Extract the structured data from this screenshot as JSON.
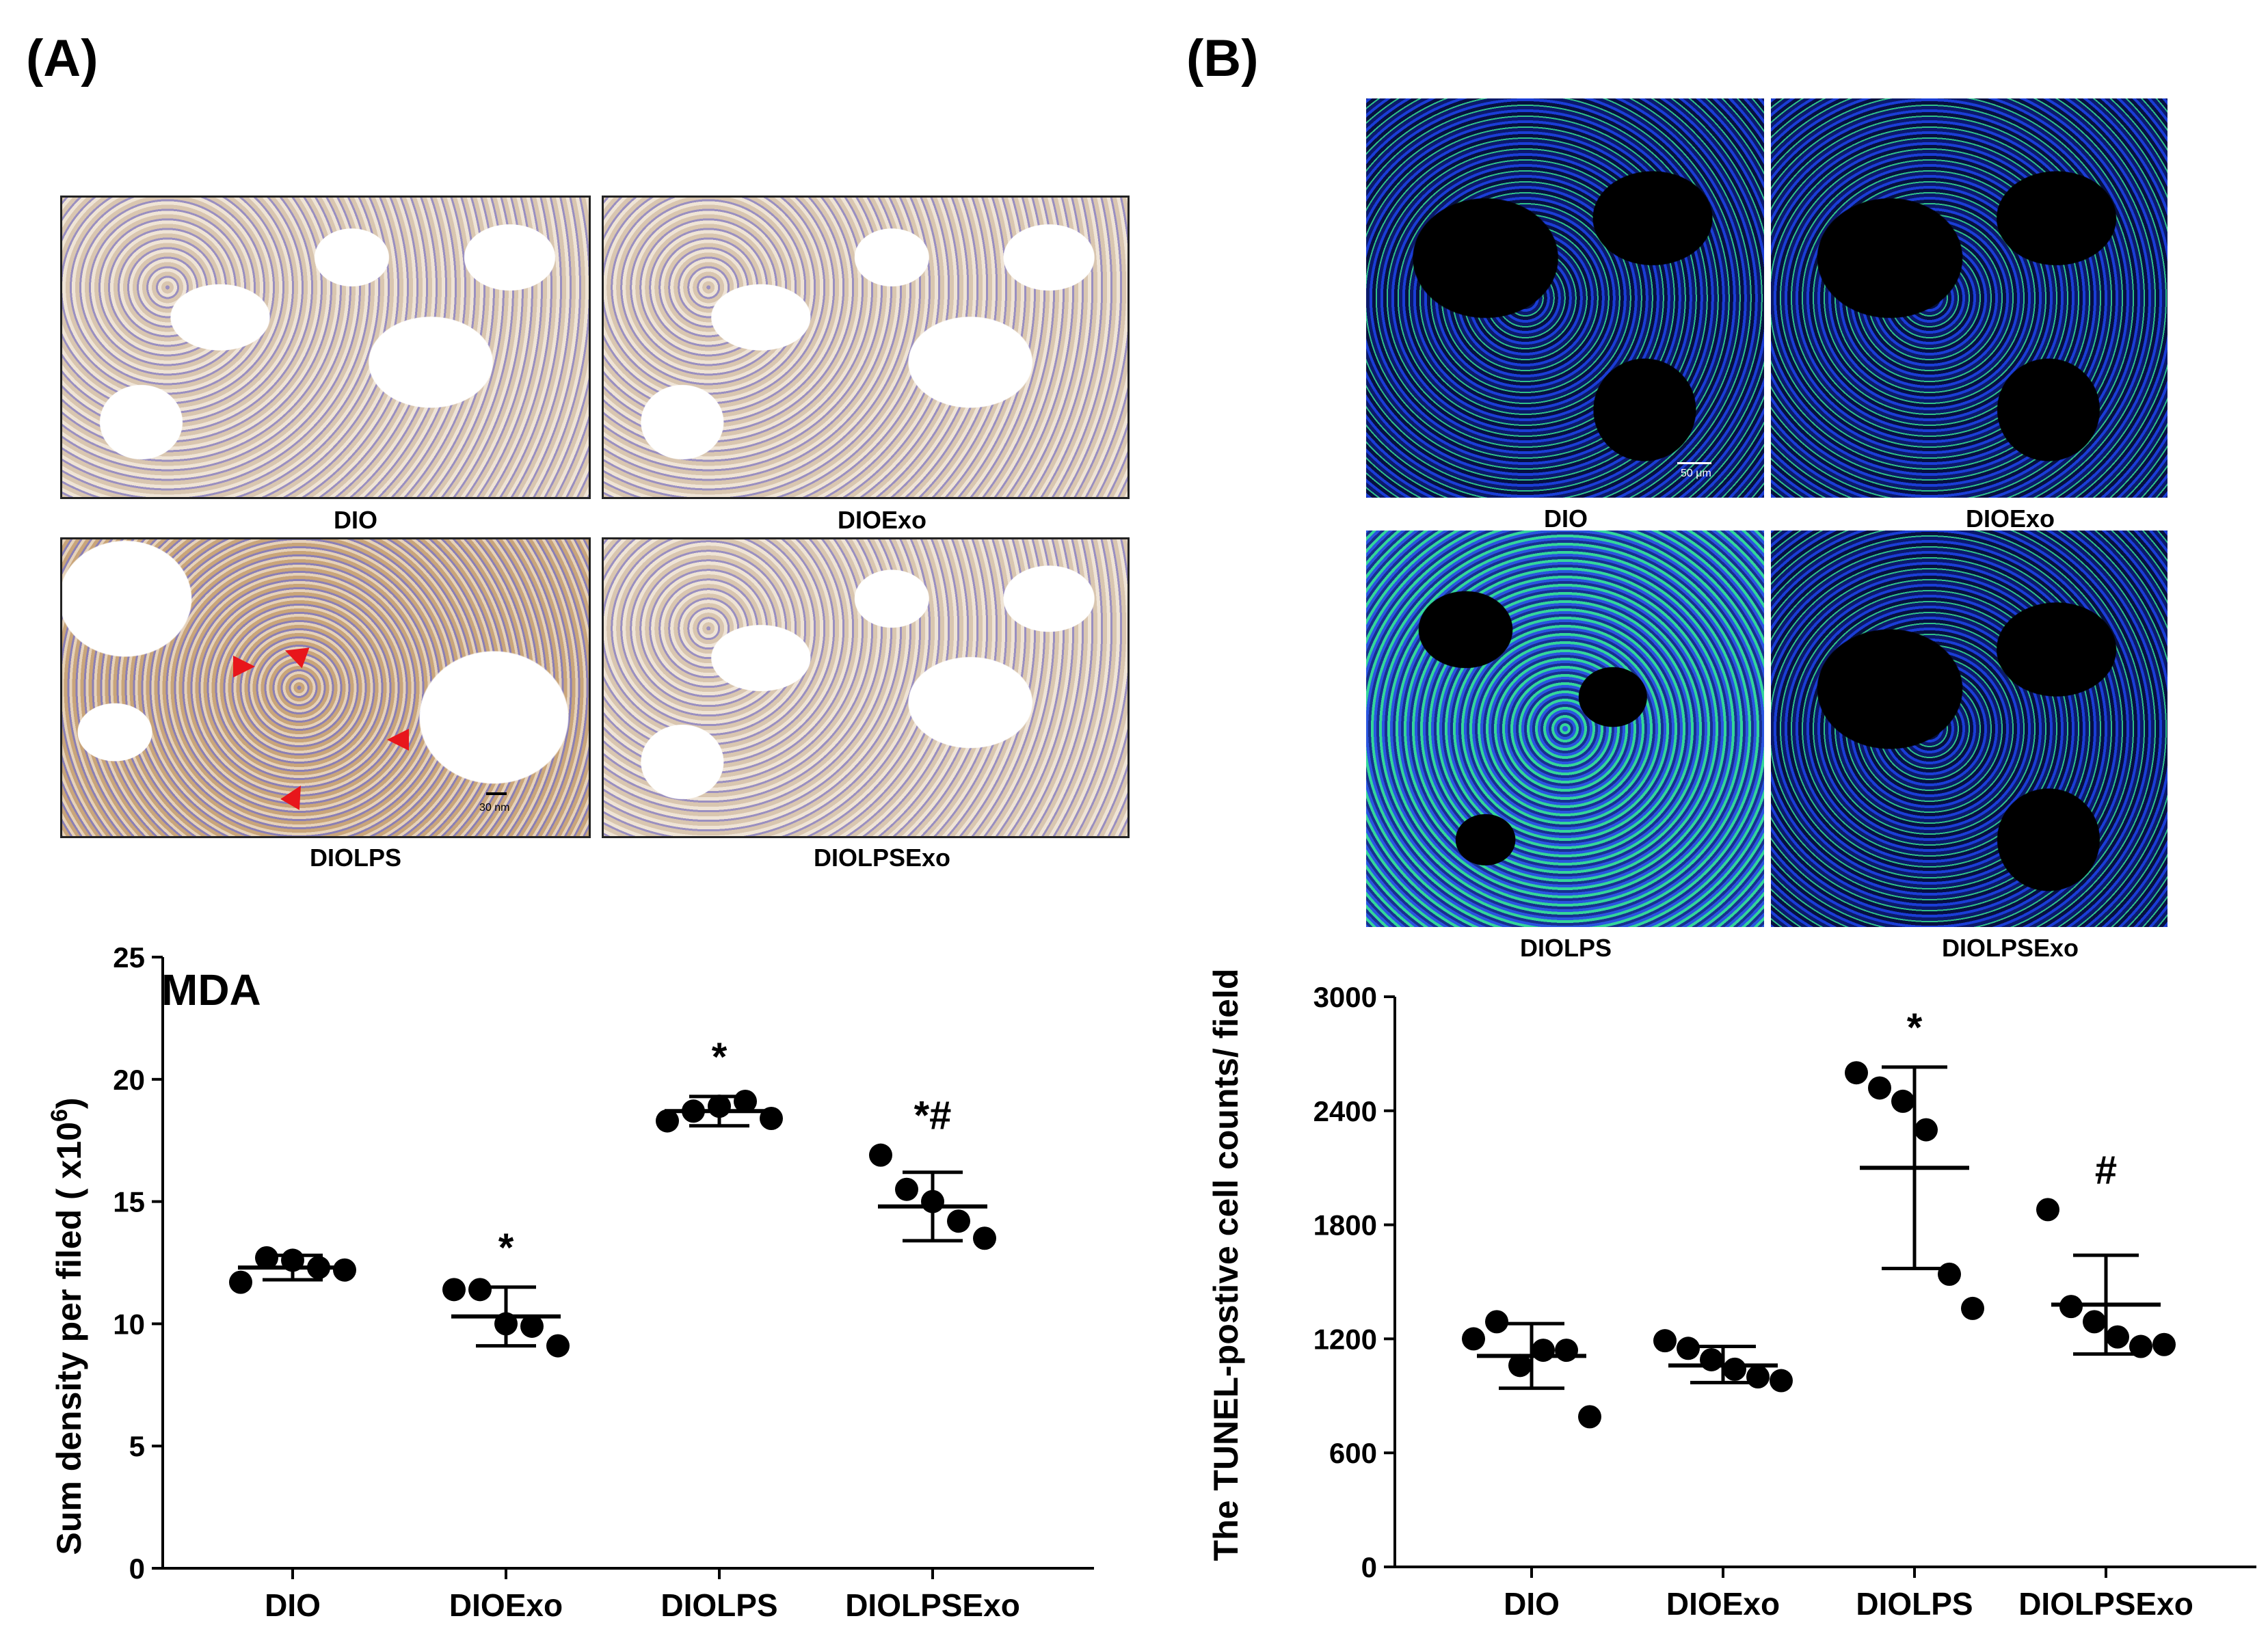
{
  "panel_labels": {
    "a": "(A)",
    "b": "(B)"
  },
  "panel_a": {
    "micrographs": [
      {
        "label": "DIO"
      },
      {
        "label": "DIOExo"
      },
      {
        "label": "DIOLPS"
      },
      {
        "label": "DIOLPSExo"
      }
    ],
    "scale_bar": "30 nm"
  },
  "panel_b": {
    "micrographs": [
      {
        "label": "DIO"
      },
      {
        "label": "DIOExo"
      },
      {
        "label": "DIOLPS"
      },
      {
        "label": "DIOLPSExo"
      }
    ],
    "scale_bar": "50 μm"
  },
  "chart_data": [
    {
      "type": "scatter",
      "title": "MDA",
      "ylabel": "Sum density per filed ( x10⁶)",
      "xlabel": "",
      "categories": [
        "DIO",
        "DIOExo",
        "DIOLPS",
        "DIOLPSExo"
      ],
      "ylim": [
        0,
        25
      ],
      "yticks": [
        0,
        5,
        10,
        15,
        20,
        25
      ],
      "grid": false,
      "points": [
        [
          11.7,
          12.7,
          12.6,
          12.3,
          12.2
        ],
        [
          11.4,
          11.4,
          10.0,
          9.9,
          9.1
        ],
        [
          18.3,
          18.7,
          18.9,
          19.1,
          18.4
        ],
        [
          16.9,
          15.5,
          15.0,
          14.2,
          13.5
        ]
      ],
      "means": [
        12.3,
        10.3,
        18.7,
        14.8
      ],
      "error_upper": [
        12.8,
        11.5,
        19.3,
        16.2
      ],
      "error_lower": [
        11.8,
        9.1,
        18.1,
        13.4
      ],
      "annotations": [
        "",
        "*",
        "*",
        "*#"
      ]
    },
    {
      "type": "scatter",
      "title": "",
      "ylabel": "The TUNEL-postive cell counts/ field",
      "xlabel": "",
      "categories": [
        "DIO",
        "DIOExo",
        "DIOLPS",
        "DIOLPSExo"
      ],
      "ylim": [
        0,
        3000
      ],
      "yticks": [
        0,
        600,
        1200,
        1800,
        2400,
        3000
      ],
      "grid": false,
      "points": [
        [
          1200,
          1290,
          1060,
          1140,
          1140,
          790
        ],
        [
          1190,
          1150,
          1090,
          1040,
          1000,
          980
        ],
        [
          2600,
          2520,
          2450,
          2300,
          1540,
          1360
        ],
        [
          1880,
          1370,
          1290,
          1210,
          1160,
          1170
        ]
      ],
      "means": [
        1110,
        1060,
        2100,
        1380
      ],
      "error_upper": [
        1280,
        1160,
        2630,
        1640
      ],
      "error_lower": [
        940,
        970,
        1570,
        1120
      ],
      "annotations": [
        "",
        "",
        "*",
        "#"
      ]
    }
  ]
}
